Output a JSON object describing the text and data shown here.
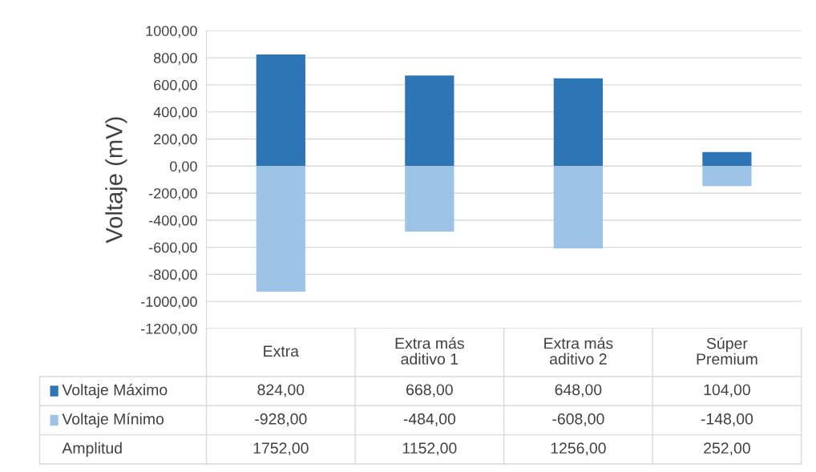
{
  "chart_data": {
    "type": "bar",
    "stacked": true,
    "legend": "bottom left",
    "ylabel": "Voltaje (mV)",
    "annotations": [
      "Amplitud",
      "1752,00",
      "1152,00",
      "1256,00",
      "252,00"
    ],
    "categories": [
      "Extra",
      "Extra más aditivo 1",
      "Extra más aditivo 2",
      "Súper Premium"
    ],
    "series": [
      {
        "name": "Voltaje Máximo",
        "color": "#2e75b6",
        "values": [
          824,
          668,
          648,
          104
        ],
        "value_labels": [
          "824,00",
          "668,00",
          "648,00",
          "104,00"
        ]
      },
      {
        "name": "Voltaje Mínimo",
        "color": "#9dc3e6",
        "values": [
          -928,
          -484,
          -608,
          -148
        ],
        "value_labels": [
          "-928,00",
          "-484,00",
          "-608,00",
          "-148,00"
        ]
      }
    ],
    "ylim": [
      -1200,
      1000
    ],
    "yticks": [
      {
        "value": -1200,
        "label": "-1200,00"
      },
      {
        "value": -1000,
        "label": "-1000,00"
      },
      {
        "value": -800,
        "label": "-800,00"
      },
      {
        "value": -600,
        "label": "-600,00"
      },
      {
        "value": -400,
        "label": "-400,00"
      },
      {
        "value": -200,
        "label": "-200,00"
      },
      {
        "value": 0,
        "label": "0,00"
      },
      {
        "value": 200,
        "label": "200,00"
      },
      {
        "value": 400,
        "label": "400,00"
      },
      {
        "value": 600,
        "label": "600,00"
      },
      {
        "value": 800,
        "label": "800,00"
      },
      {
        "value": 1000,
        "label": "1000,00"
      }
    ],
    "grid": "y"
  }
}
